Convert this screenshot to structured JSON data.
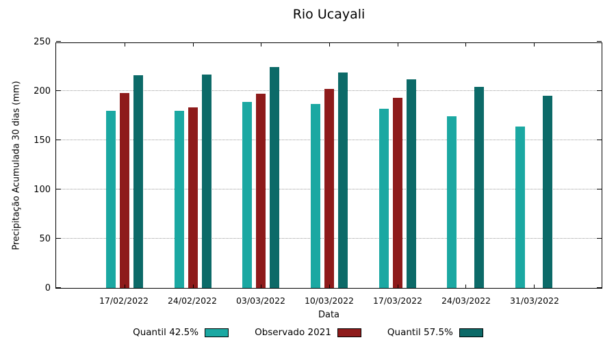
{
  "chart_data": {
    "type": "bar",
    "title": "Rio Ucayali",
    "xlabel": "Data",
    "ylabel": "Precipitação Acumulada 30 dias (mm)",
    "ylim": [
      0,
      250
    ],
    "yticks": [
      0,
      50,
      100,
      150,
      200,
      250
    ],
    "grid": "dotted-horizontal",
    "legend_position": "bottom",
    "categories": [
      "17/02/2022",
      "24/02/2022",
      "03/03/2022",
      "10/03/2022",
      "17/03/2022",
      "24/03/2022",
      "31/03/2022"
    ],
    "series": [
      {
        "name": "Quantil 42.5%",
        "color": "#1BA8A2",
        "values": [
          180,
          180,
          189,
          187,
          182,
          174,
          164
        ]
      },
      {
        "name": "Observado 2021",
        "color": "#8E1B1B",
        "values": [
          198,
          183,
          197,
          202,
          193,
          null,
          null
        ]
      },
      {
        "name": "Quantil 57.5%",
        "color": "#0C6A68",
        "values": [
          216,
          217,
          224,
          219,
          212,
          204,
          195
        ]
      }
    ],
    "colors": {
      "axis": "#000000",
      "grid": "#9a9a9a",
      "background": "#ffffff"
    }
  }
}
